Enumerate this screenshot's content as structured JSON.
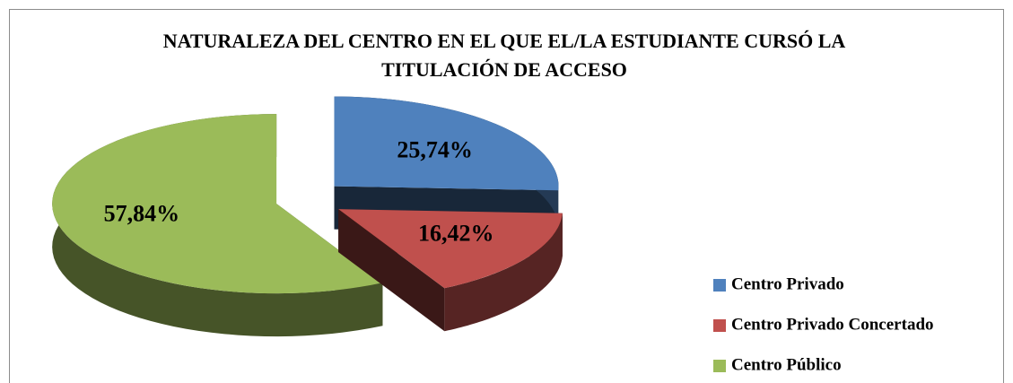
{
  "chart_data": {
    "type": "pie",
    "title": [
      "NATURALEZA DEL CENTRO EN EL QUE EL/LA ESTUDIANTE CURSÓ LA",
      "TITULACIÓN DE ACCESO"
    ],
    "categories": [
      "Centro Privado",
      "Centro Privado Concertado",
      "Centro Público"
    ],
    "values": [
      25.74,
      16.42,
      57.84
    ],
    "value_labels": [
      "25,74%",
      "16,42%",
      "57,84%"
    ],
    "colors": [
      "#4f81bd",
      "#c0504d",
      "#9bbb59"
    ],
    "legend": "right"
  }
}
